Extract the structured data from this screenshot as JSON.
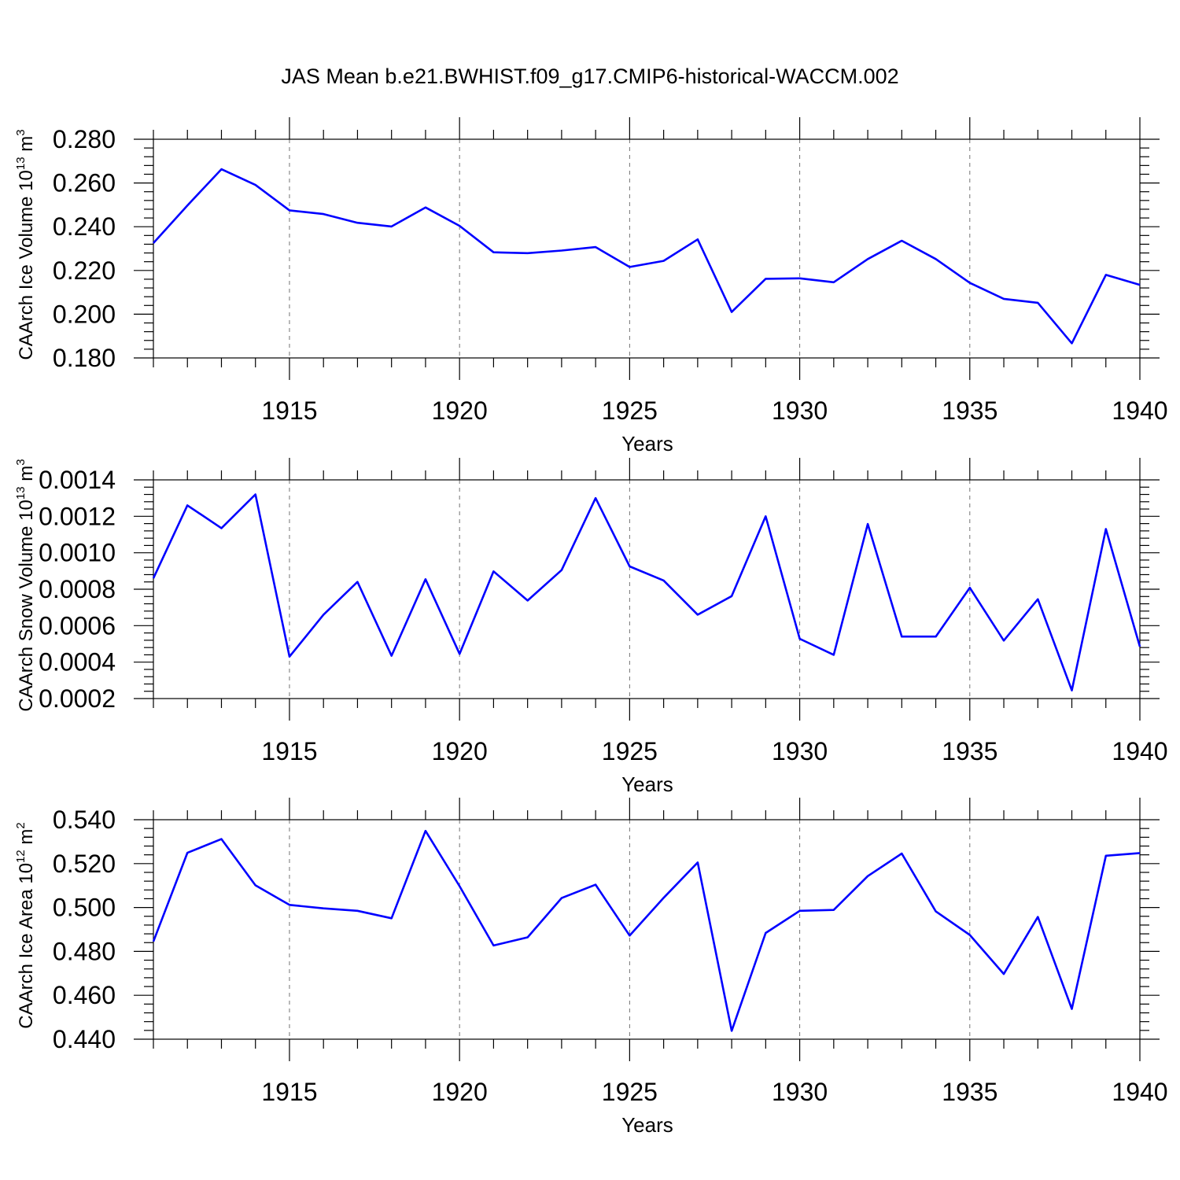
{
  "title": "JAS Mean b.e21.BWHIST.f09_g17.CMIP6-historical-WACCM.002",
  "colors": {
    "line": "#0000ff",
    "axis": "#000000"
  },
  "chart_data": [
    {
      "type": "line",
      "ylabel": "CAArch Ice Volume 10",
      "ylabel_exp": "13",
      "ylabel_unit": " m",
      "ylabel_unit_exp": "3",
      "xlabel": "Years",
      "xlim": [
        1911,
        1940
      ],
      "ylim": [
        0.18,
        0.28
      ],
      "yticks": [
        "0.180",
        "0.200",
        "0.220",
        "0.240",
        "0.260",
        "0.280"
      ],
      "xticks": [
        "1915",
        "1920",
        "1925",
        "1930",
        "1935",
        "1940"
      ],
      "grid": "vertical dashed at major x ticks",
      "x": [
        1911,
        1912,
        1913,
        1914,
        1915,
        1916,
        1917,
        1918,
        1919,
        1920,
        1921,
        1922,
        1923,
        1924,
        1925,
        1926,
        1927,
        1928,
        1929,
        1930,
        1931,
        1932,
        1933,
        1934,
        1935,
        1936,
        1937,
        1938,
        1939,
        1940
      ],
      "values": [
        0.2325,
        0.2497,
        0.2663,
        0.2591,
        0.2475,
        0.2458,
        0.2418,
        0.2401,
        0.2488,
        0.2404,
        0.2283,
        0.2279,
        0.2291,
        0.2307,
        0.2216,
        0.2244,
        0.2342,
        0.201,
        0.2162,
        0.2164,
        0.2146,
        0.2252,
        0.2336,
        0.2252,
        0.2143,
        0.207,
        0.2052,
        0.1867,
        0.218,
        0.2134
      ]
    },
    {
      "type": "line",
      "ylabel": "CAArch Snow Volume 10",
      "ylabel_exp": "13",
      "ylabel_unit": " m",
      "ylabel_unit_exp": "3",
      "xlabel": "Years",
      "xlim": [
        1911,
        1940
      ],
      "ylim": [
        0.0002,
        0.0014
      ],
      "yticks": [
        "0.0002",
        "0.0004",
        "0.0006",
        "0.0008",
        "0.0010",
        "0.0012",
        "0.0014"
      ],
      "xticks": [
        "1915",
        "1920",
        "1925",
        "1930",
        "1935",
        "1940"
      ],
      "grid": "vertical dashed at major x ticks",
      "x": [
        1911,
        1912,
        1913,
        1914,
        1915,
        1916,
        1917,
        1918,
        1919,
        1920,
        1921,
        1922,
        1923,
        1924,
        1925,
        1926,
        1927,
        1928,
        1929,
        1930,
        1931,
        1932,
        1933,
        1934,
        1935,
        1936,
        1937,
        1938,
        1939,
        1940
      ],
      "values": [
        0.00086,
        0.00126,
        0.001135,
        0.00132,
        0.00043,
        0.00066,
        0.00084,
        0.000435,
        0.000855,
        0.000445,
        0.000898,
        0.000738,
        0.000905,
        0.0013,
        0.000925,
        0.000848,
        0.00066,
        0.000762,
        0.0012,
        0.000528,
        0.00044,
        0.001158,
        0.00054,
        0.00054,
        0.000808,
        0.000518,
        0.000745,
        0.000245,
        0.00113,
        0.000485
      ]
    },
    {
      "type": "line",
      "ylabel": "CAArch Ice Area 10",
      "ylabel_exp": "12",
      "ylabel_unit": " m",
      "ylabel_unit_exp": "2",
      "xlabel": "Years",
      "xlim": [
        1911,
        1940
      ],
      "ylim": [
        0.44,
        0.54
      ],
      "yticks": [
        "0.440",
        "0.460",
        "0.480",
        "0.500",
        "0.520",
        "0.540"
      ],
      "xticks": [
        "1915",
        "1920",
        "1925",
        "1930",
        "1935",
        "1940"
      ],
      "grid": "vertical dashed at major x ticks",
      "x": [
        1911,
        1912,
        1913,
        1914,
        1915,
        1916,
        1917,
        1918,
        1919,
        1920,
        1921,
        1922,
        1923,
        1924,
        1925,
        1926,
        1927,
        1928,
        1929,
        1930,
        1931,
        1932,
        1933,
        1934,
        1935,
        1936,
        1937,
        1938,
        1939,
        1940
      ],
      "values": [
        0.4845,
        0.5249,
        0.5312,
        0.5101,
        0.5012,
        0.4996,
        0.4985,
        0.4951,
        0.5349,
        0.5097,
        0.4827,
        0.4864,
        0.5043,
        0.5104,
        0.4872,
        0.5044,
        0.5205,
        0.4438,
        0.4884,
        0.4985,
        0.4989,
        0.5143,
        0.5246,
        0.4982,
        0.4875,
        0.4697,
        0.4957,
        0.4538,
        0.5236,
        0.5248
      ]
    }
  ]
}
